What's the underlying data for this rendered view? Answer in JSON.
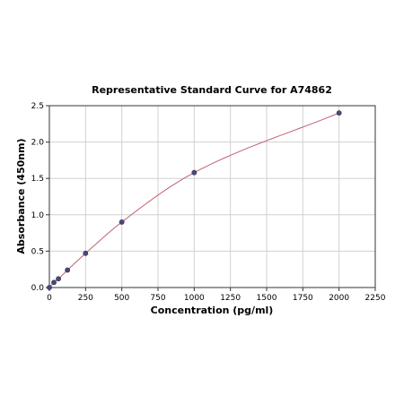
{
  "chart_data": {
    "type": "scatter",
    "title": "Representative Standard Curve for A74862",
    "xlabel": "Concentration (pg/ml)",
    "ylabel": "Absorbance (450nm)",
    "xlim": [
      0,
      2250
    ],
    "ylim": [
      0,
      2.5
    ],
    "xticks": [
      0,
      250,
      500,
      750,
      1000,
      1250,
      1500,
      1750,
      2000,
      2250
    ],
    "yticks": [
      0.0,
      0.5,
      1.0,
      1.5,
      2.0,
      2.5
    ],
    "xtick_labels": [
      "0",
      "250",
      "500",
      "750",
      "1000",
      "1250",
      "1500",
      "1750",
      "2000",
      "2250"
    ],
    "ytick_labels": [
      "0.0",
      "0.5",
      "1.0",
      "1.5",
      "2.0",
      "2.5"
    ],
    "grid": true,
    "series": [
      {
        "points": [
          {
            "x": 0,
            "y": 0.0
          },
          {
            "x": 31.25,
            "y": 0.07
          },
          {
            "x": 62.5,
            "y": 0.12
          },
          {
            "x": 125,
            "y": 0.24
          },
          {
            "x": 250,
            "y": 0.47
          },
          {
            "x": 500,
            "y": 0.9
          },
          {
            "x": 1000,
            "y": 1.58
          },
          {
            "x": 2000,
            "y": 2.4
          }
        ],
        "fit": "smooth curve",
        "color": "#c06070",
        "marker_color": "#4a4a78"
      }
    ]
  }
}
